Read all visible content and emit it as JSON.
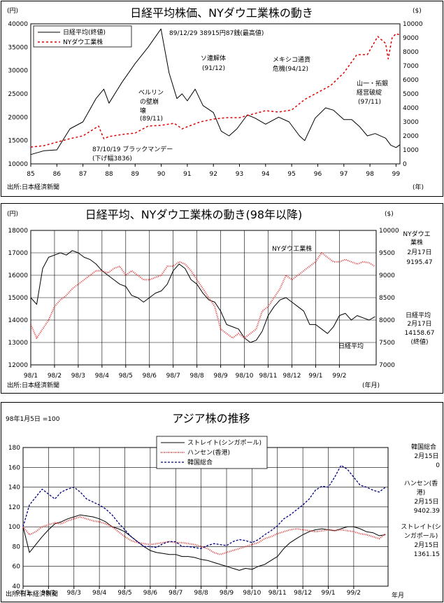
{
  "charts": [
    {
      "title": "日経平均株価、NYダウ工業株の動き",
      "left_unit": "(円)",
      "right_unit": "($)",
      "source": "出所:日本経済新聞",
      "x_unit": "(年)",
      "legend": [
        "日経平均(終値)",
        "NYダウ工業株"
      ],
      "annotations": [
        {
          "text": "89/12/29 38915円87銭(最高値)"
        },
        {
          "text": "ソ連解体"
        },
        {
          "text": "(91/12)"
        },
        {
          "text": "メキシコ通貨"
        },
        {
          "text": "危機(94/12)"
        },
        {
          "text": "山一・拓銀"
        },
        {
          "text": "経営破綻"
        },
        {
          "text": "(97/11)"
        },
        {
          "text": "ベルリン"
        },
        {
          "text": "の壁崩"
        },
        {
          "text": "壊"
        },
        {
          "text": "(89/11)"
        },
        {
          "text": "87/10/19 ブラックマンデー"
        },
        {
          "text": "(下げ幅3836)"
        }
      ]
    },
    {
      "title": "日経平均、NYダウ工業株の動き(98年以降)",
      "left_unit": "(円)",
      "right_unit": "($)",
      "source": "出所:日本経済新聞",
      "x_unit": "(年月)",
      "series_labels": [
        "NYダウ工業株",
        "日経平均"
      ],
      "side_notes": {
        "dow_name_1": "NYダウエ",
        "dow_name_2": "業株",
        "dow_date": "2月17日",
        "dow_value": "9195.47",
        "nikkei_name": "日経平均",
        "nikkei_date": "2月17日",
        "nikkei_value": "14158.67",
        "nikkei_close": "(終値)"
      }
    },
    {
      "title": "アジア株の推移",
      "base_note": "98年1月5日 =100",
      "source": "出所:日本経済新聞",
      "x_unit": "年月",
      "legend": [
        "ストレイト(シンガポール)",
        "ハンセン(香港)",
        "韓国総合"
      ],
      "side_notes": {
        "kospi_name": "韓国総合",
        "kospi_date": "2月15日",
        "kospi_value": "0",
        "hs_name_1": "ハンセン(香",
        "hs_name_2": "港)",
        "hs_date": "2月15日",
        "hs_value": "9402.39",
        "st_name_1": "ストレイト(シ",
        "st_name_2": "ンガポール)",
        "st_date": "2月15日",
        "st_value": "1361.15"
      }
    }
  ],
  "chart_data": [
    {
      "type": "line",
      "title": "日経平均株価、NYダウ工業株の動き",
      "x_ticks": [
        "85",
        "86",
        "87",
        "88",
        "89",
        "90",
        "91",
        "92",
        "93",
        "94",
        "95",
        "96",
        "97",
        "98",
        "99"
      ],
      "x_range": [
        1985,
        1999.15
      ],
      "y_left": {
        "range": [
          10000,
          40000
        ],
        "ticks": [
          "10000",
          "15000",
          "20000",
          "25000",
          "30000",
          "35000",
          "40000"
        ]
      },
      "y_right": {
        "range": [
          0,
          10000
        ],
        "ticks": [
          "0",
          "1000",
          "2000",
          "3000",
          "4000",
          "5000",
          "6000",
          "7000",
          "8000",
          "9000",
          "10000"
        ]
      },
      "grid": false,
      "legend_position": "top-left",
      "series": [
        {
          "name": "日経平均(終値)",
          "axis": "left",
          "x": [
            1985.0,
            1985.5,
            1986.0,
            1986.5,
            1987.0,
            1987.5,
            1987.8,
            1988.0,
            1988.5,
            1989.0,
            1989.5,
            1989.99,
            1990.3,
            1990.6,
            1990.8,
            1991.0,
            1991.3,
            1991.6,
            1992.0,
            1992.3,
            1992.6,
            1992.9,
            1993.3,
            1993.6,
            1994.0,
            1994.5,
            1994.9,
            1995.3,
            1995.5,
            1995.9,
            1996.3,
            1996.6,
            1997.0,
            1997.3,
            1997.6,
            1997.9,
            1998.2,
            1998.6,
            1998.8,
            1999.0,
            1999.15
          ],
          "y": [
            12000,
            12800,
            13000,
            17500,
            19000,
            24000,
            26000,
            23000,
            27500,
            31500,
            35000,
            38900,
            29500,
            24000,
            25000,
            23500,
            26000,
            22500,
            21000,
            17000,
            16000,
            17500,
            20500,
            19800,
            18500,
            20000,
            19000,
            16000,
            15000,
            19800,
            22000,
            21500,
            19500,
            19500,
            18000,
            16000,
            16500,
            15500,
            14000,
            13500,
            14100
          ]
        },
        {
          "name": "NYダウ工業株",
          "axis": "right",
          "x": [
            1985.0,
            1985.5,
            1986.0,
            1986.5,
            1987.0,
            1987.6,
            1987.8,
            1988.0,
            1988.5,
            1989.0,
            1989.5,
            1989.99,
            1990.5,
            1990.8,
            1991.0,
            1991.5,
            1992.0,
            1992.5,
            1993.0,
            1993.5,
            1994.0,
            1994.5,
            1995.0,
            1995.5,
            1996.0,
            1996.5,
            1997.0,
            1997.5,
            1997.9,
            1998.3,
            1998.6,
            1998.7,
            1998.85,
            1999.0,
            1999.15
          ],
          "y": [
            1200,
            1300,
            1550,
            1800,
            2000,
            2700,
            1800,
            1950,
            2100,
            2200,
            2700,
            2750,
            2900,
            2500,
            2650,
            3000,
            3200,
            3300,
            3300,
            3550,
            3800,
            3700,
            3850,
            4600,
            5100,
            5600,
            6500,
            7800,
            7800,
            9100,
            8600,
            7500,
            9000,
            9300,
            9200
          ]
        }
      ]
    },
    {
      "type": "line",
      "title": "日経平均、NYダウ工業株の動き(98年以降)",
      "x_ticks": [
        "98/1",
        "98/2",
        "98/3",
        "98/4",
        "98/5",
        "98/6",
        "98/7",
        "98/8",
        "98/9",
        "98/10",
        "98/11",
        "98/12",
        "99/1",
        "99/2"
      ],
      "x_range": [
        0,
        14.55
      ],
      "y_left": {
        "range": [
          12000,
          18000
        ],
        "ticks": [
          "12000",
          "13000",
          "14000",
          "15000",
          "16000",
          "17000",
          "18000"
        ]
      },
      "y_right": {
        "range": [
          7000,
          10000
        ],
        "ticks": [
          "7000",
          "7500",
          "8000",
          "8500",
          "9000",
          "9500",
          "10000"
        ]
      },
      "grid": true,
      "series": [
        {
          "name": "日経平均",
          "axis": "left",
          "x": [
            0,
            0.25,
            0.5,
            0.75,
            1.0,
            1.25,
            1.5,
            1.75,
            2.0,
            2.25,
            2.5,
            2.75,
            3.0,
            3.25,
            3.5,
            3.75,
            4.0,
            4.25,
            4.5,
            4.75,
            5.0,
            5.25,
            5.5,
            5.75,
            6.0,
            6.25,
            6.5,
            6.75,
            7.0,
            7.25,
            7.5,
            7.75,
            8.0,
            8.25,
            8.5,
            8.75,
            9.0,
            9.25,
            9.5,
            9.75,
            10.0,
            10.25,
            10.5,
            10.75,
            11.0,
            11.25,
            11.5,
            11.75,
            12.0,
            12.25,
            12.5,
            12.75,
            13.0,
            13.25,
            13.5,
            13.75,
            14.0,
            14.25,
            14.5
          ],
          "y": [
            15000,
            14700,
            16300,
            16800,
            16900,
            17000,
            16900,
            17100,
            17000,
            16800,
            16700,
            16500,
            16200,
            16000,
            15800,
            15600,
            15500,
            15100,
            15000,
            14800,
            15000,
            15200,
            15300,
            15600,
            16200,
            16500,
            16300,
            15800,
            15600,
            15200,
            14900,
            14800,
            14400,
            13800,
            13700,
            13600,
            13200,
            13000,
            13100,
            13500,
            14200,
            14600,
            14900,
            15000,
            14800,
            14600,
            14400,
            13800,
            13800,
            13600,
            13400,
            13700,
            14200,
            14300,
            14000,
            14200,
            14100,
            14000,
            14150
          ]
        },
        {
          "name": "NYダウ工業株",
          "axis": "right",
          "x": [
            0,
            0.25,
            0.5,
            0.75,
            1.0,
            1.25,
            1.5,
            1.75,
            2.0,
            2.25,
            2.5,
            2.75,
            3.0,
            3.25,
            3.5,
            3.75,
            4.0,
            4.25,
            4.5,
            4.75,
            5.0,
            5.25,
            5.5,
            5.75,
            6.0,
            6.25,
            6.5,
            6.75,
            7.0,
            7.25,
            7.5,
            7.75,
            8.0,
            8.25,
            8.5,
            8.75,
            9.0,
            9.25,
            9.5,
            9.75,
            10.0,
            10.25,
            10.5,
            10.75,
            11.0,
            11.25,
            11.5,
            11.75,
            12.0,
            12.25,
            12.5,
            12.75,
            13.0,
            13.25,
            13.5,
            13.75,
            14.0,
            14.25,
            14.5
          ],
          "y": [
            7900,
            7600,
            7800,
            8000,
            8300,
            8450,
            8550,
            8700,
            8800,
            8900,
            9000,
            9100,
            9100,
            9050,
            9150,
            9200,
            9000,
            9100,
            9000,
            8900,
            8900,
            8950,
            9000,
            9200,
            9200,
            9300,
            9250,
            9100,
            8900,
            8700,
            8500,
            8300,
            7800,
            7700,
            7600,
            7700,
            7600,
            7700,
            7800,
            8200,
            8300,
            8500,
            8700,
            9000,
            8900,
            9000,
            9100,
            9200,
            9300,
            9500,
            9400,
            9300,
            9300,
            9350,
            9300,
            9250,
            9300,
            9280,
            9195
          ]
        }
      ]
    },
    {
      "type": "line",
      "title": "アジア株の推移",
      "x_ticks": [
        "98/1",
        "98/2",
        "98/3",
        "98/4",
        "98/5",
        "98/6",
        "98/7",
        "98/8",
        "98/9",
        "98/10",
        "98/11",
        "98/12",
        "99/1",
        "99/2"
      ],
      "x_range": [
        0,
        14.35
      ],
      "y_left": {
        "range": [
          40,
          180
        ],
        "ticks": [
          "40",
          "60",
          "80",
          "100",
          "120",
          "140",
          "160",
          "180"
        ]
      },
      "grid": true,
      "legend_position": "top-center",
      "series": [
        {
          "name": "ストレイト(シンガポール)",
          "x": [
            0,
            0.25,
            0.5,
            0.75,
            1.0,
            1.25,
            1.5,
            1.75,
            2.0,
            2.25,
            2.5,
            2.75,
            3.0,
            3.25,
            3.5,
            3.75,
            4.0,
            4.25,
            4.5,
            4.75,
            5.0,
            5.25,
            5.5,
            5.75,
            6.0,
            6.25,
            6.5,
            6.75,
            7.0,
            7.25,
            7.5,
            7.75,
            8.0,
            8.25,
            8.5,
            8.75,
            9.0,
            9.25,
            9.5,
            9.75,
            10.0,
            10.25,
            10.5,
            10.75,
            11.0,
            11.25,
            11.5,
            11.75,
            12.0,
            12.25,
            12.5,
            12.75,
            13.0,
            13.25,
            13.5,
            13.75,
            14.0,
            14.25
          ],
          "y": [
            100,
            74,
            82,
            90,
            97,
            103,
            105,
            108,
            110,
            112,
            111,
            110,
            108,
            105,
            100,
            98,
            95,
            90,
            85,
            80,
            76,
            74,
            73,
            72,
            72,
            70,
            70,
            69,
            67,
            66,
            64,
            62,
            60,
            58,
            56,
            58,
            57,
            60,
            62,
            66,
            70,
            78,
            84,
            88,
            92,
            95,
            97,
            98,
            97,
            96,
            98,
            100,
            100,
            98,
            95,
            94,
            91,
            92
          ]
        },
        {
          "name": "ハンセン(香港)",
          "x": [
            0,
            0.25,
            0.5,
            0.75,
            1.0,
            1.25,
            1.5,
            1.75,
            2.0,
            2.25,
            2.5,
            2.75,
            3.0,
            3.25,
            3.5,
            3.75,
            4.0,
            4.25,
            4.5,
            4.75,
            5.0,
            5.25,
            5.5,
            5.75,
            6.0,
            6.25,
            6.5,
            6.75,
            7.0,
            7.25,
            7.5,
            7.75,
            8.0,
            8.25,
            8.5,
            8.75,
            9.0,
            9.25,
            9.5,
            9.75,
            10.0,
            10.25,
            10.5,
            10.75,
            11.0,
            11.25,
            11.5,
            11.75,
            12.0,
            12.25,
            12.5,
            12.75,
            13.0,
            13.25,
            13.5,
            13.75,
            14.0,
            14.25
          ],
          "y": [
            100,
            92,
            95,
            100,
            102,
            104,
            103,
            106,
            108,
            110,
            108,
            106,
            105,
            103,
            100,
            95,
            90,
            86,
            84,
            83,
            82,
            83,
            84,
            85,
            84,
            84,
            83,
            82,
            80,
            78,
            74,
            72,
            74,
            76,
            78,
            80,
            82,
            84,
            88,
            90,
            93,
            95,
            97,
            98,
            97,
            96,
            95,
            96,
            97,
            96,
            97,
            96,
            95,
            93,
            92,
            90,
            88,
            93
          ]
        },
        {
          "name": "韓国総合",
          "x": [
            0,
            0.25,
            0.5,
            0.75,
            1.0,
            1.25,
            1.5,
            1.75,
            2.0,
            2.25,
            2.5,
            2.75,
            3.0,
            3.25,
            3.5,
            3.75,
            4.0,
            4.25,
            4.5,
            4.75,
            5.0,
            5.25,
            5.5,
            5.75,
            6.0,
            6.25,
            6.5,
            6.75,
            7.0,
            7.25,
            7.5,
            7.75,
            8.0,
            8.25,
            8.5,
            8.75,
            9.0,
            9.25,
            9.5,
            9.75,
            10.0,
            10.25,
            10.5,
            10.75,
            11.0,
            11.25,
            11.5,
            11.75,
            12.0,
            12.25,
            12.5,
            12.75,
            13.0,
            13.25,
            13.5,
            13.75,
            14.0,
            14.25
          ],
          "y": [
            100,
            122,
            130,
            138,
            133,
            128,
            135,
            138,
            140,
            135,
            128,
            125,
            122,
            118,
            112,
            104,
            97,
            90,
            85,
            80,
            80,
            79,
            83,
            85,
            85,
            80,
            80,
            79,
            78,
            81,
            83,
            82,
            81,
            85,
            87,
            86,
            84,
            87,
            92,
            96,
            101,
            108,
            112,
            117,
            122,
            128,
            137,
            141,
            140,
            150,
            162,
            158,
            150,
            142,
            140,
            137,
            135,
            140
          ]
        }
      ]
    }
  ]
}
